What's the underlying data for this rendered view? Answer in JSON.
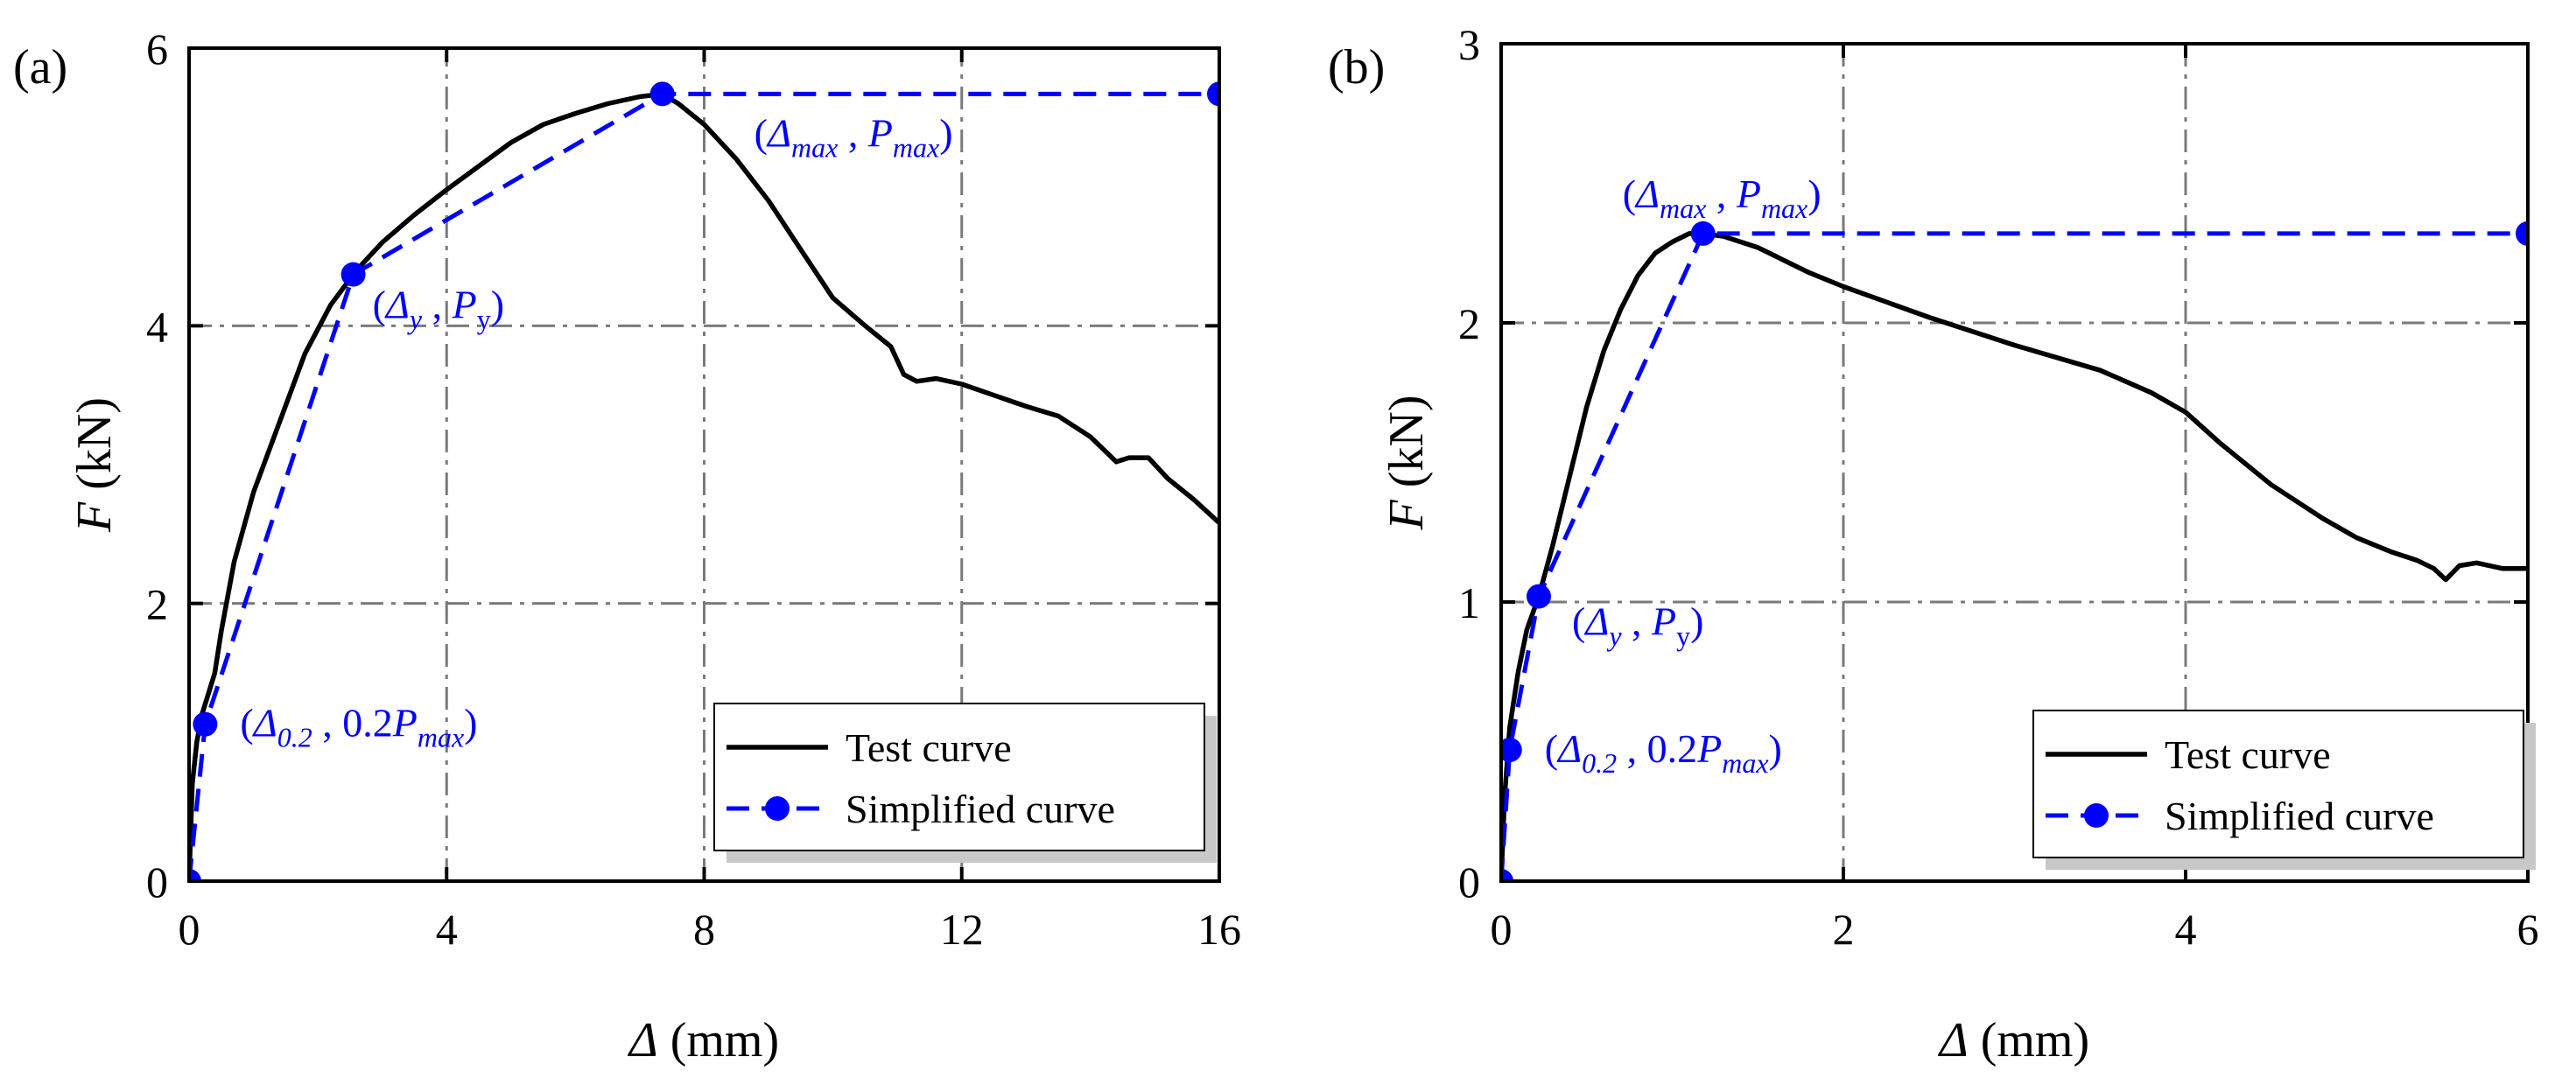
{
  "figure": {
    "panels": [
      "a",
      "b"
    ]
  },
  "chart_data": [
    {
      "type": "line",
      "panel_label": "(a)",
      "xlabel_symbol": "Δ",
      "xlabel_unit": " (mm)",
      "ylabel_symbol": "F",
      "ylabel_unit": " (kN)",
      "xlim": [
        0,
        16
      ],
      "ylim": [
        0,
        6
      ],
      "xticks": [
        0,
        4,
        8,
        12,
        16
      ],
      "yticks": [
        0,
        2,
        4,
        6
      ],
      "grid": true,
      "legend_position": "bottom-right",
      "series": [
        {
          "name": "Test curve",
          "style": "solid",
          "color": "#000000",
          "x": [
            0,
            0.05,
            0.12,
            0.2,
            0.3,
            0.4,
            0.5,
            0.7,
            1.0,
            1.4,
            1.8,
            2.2,
            2.6,
            3.0,
            3.5,
            4.0,
            4.5,
            5.0,
            5.5,
            6.0,
            6.5,
            7.0,
            7.35,
            7.6,
            8.0,
            8.5,
            9.0,
            9.5,
            10.0,
            10.5,
            10.9,
            11.1,
            11.3,
            11.6,
            12.0,
            12.5,
            13.0,
            13.5,
            14.0,
            14.4,
            14.6,
            14.9,
            15.2,
            15.6,
            16.0
          ],
          "y": [
            0,
            0.7,
            1.0,
            1.2,
            1.35,
            1.5,
            1.8,
            2.3,
            2.8,
            3.3,
            3.8,
            4.15,
            4.4,
            4.6,
            4.8,
            4.98,
            5.15,
            5.32,
            5.45,
            5.53,
            5.6,
            5.65,
            5.67,
            5.6,
            5.45,
            5.2,
            4.9,
            4.55,
            4.2,
            4.0,
            3.85,
            3.65,
            3.6,
            3.62,
            3.58,
            3.5,
            3.42,
            3.35,
            3.2,
            3.02,
            3.05,
            3.05,
            2.9,
            2.75,
            2.58
          ]
        },
        {
          "name": "Simplified curve",
          "style": "dashed",
          "color": "#0000ff",
          "marker": "circle",
          "x": [
            0,
            0.25,
            2.55,
            7.35,
            16
          ],
          "y": [
            0,
            1.13,
            4.37,
            5.67,
            5.67
          ]
        }
      ],
      "key_points": [
        {
          "x": 0.25,
          "y": 1.13,
          "label_parts": [
            "(",
            "Δ",
            "0.2",
            " , 0.2",
            "P",
            "max",
            ")"
          ]
        },
        {
          "x": 2.55,
          "y": 4.37,
          "label_parts": [
            "(",
            "Δ",
            "y",
            " , ",
            "P",
            "y",
            ")"
          ]
        },
        {
          "x": 7.35,
          "y": 5.67,
          "label_parts": [
            "(",
            "Δ",
            "max",
            " , ",
            "P",
            "max",
            ")"
          ]
        }
      ],
      "legend": [
        "Test curve",
        "Simplified curve"
      ]
    },
    {
      "type": "line",
      "panel_label": "(b)",
      "xlabel_symbol": "Δ",
      "xlabel_unit": " (mm)",
      "ylabel_symbol": "F",
      "ylabel_unit": " (kN)",
      "xlim": [
        0,
        6
      ],
      "ylim": [
        0,
        3
      ],
      "xticks": [
        0,
        2,
        4,
        6
      ],
      "yticks": [
        0,
        1,
        2,
        3
      ],
      "grid": true,
      "legend_position": "bottom-right",
      "series": [
        {
          "name": "Test curve",
          "style": "solid",
          "color": "#000000",
          "x": [
            0,
            0.02,
            0.05,
            0.1,
            0.15,
            0.22,
            0.3,
            0.4,
            0.5,
            0.6,
            0.7,
            0.8,
            0.9,
            1.0,
            1.1,
            1.18,
            1.3,
            1.5,
            1.8,
            2.0,
            2.5,
            3.0,
            3.5,
            3.8,
            4.0,
            4.2,
            4.5,
            4.8,
            5.0,
            5.2,
            5.35,
            5.45,
            5.52,
            5.6,
            5.7,
            5.85,
            6.0
          ],
          "y": [
            0,
            0.3,
            0.55,
            0.75,
            0.9,
            1.02,
            1.2,
            1.45,
            1.7,
            1.9,
            2.05,
            2.17,
            2.25,
            2.29,
            2.32,
            2.32,
            2.31,
            2.27,
            2.18,
            2.13,
            2.02,
            1.92,
            1.83,
            1.75,
            1.68,
            1.57,
            1.42,
            1.3,
            1.23,
            1.18,
            1.15,
            1.12,
            1.08,
            1.13,
            1.14,
            1.12,
            1.12
          ]
        },
        {
          "name": "Simplified curve",
          "style": "dashed",
          "color": "#0000ff",
          "marker": "circle",
          "x": [
            0,
            0.05,
            0.22,
            1.18,
            6
          ],
          "y": [
            0,
            0.47,
            1.02,
            2.32,
            2.32
          ]
        }
      ],
      "key_points": [
        {
          "x": 0.05,
          "y": 0.47,
          "label_parts": [
            "(",
            "Δ",
            "0.2",
            " , 0.2",
            "P",
            "max",
            ")"
          ]
        },
        {
          "x": 0.22,
          "y": 1.02,
          "label_parts": [
            "(",
            "Δ",
            "y",
            " , ",
            "P",
            "y",
            ")"
          ]
        },
        {
          "x": 1.18,
          "y": 2.32,
          "label_parts": [
            "(",
            "Δ",
            "max",
            " , ",
            "P",
            "max",
            ")"
          ]
        }
      ],
      "legend": [
        "Test curve",
        "Simplified curve"
      ]
    }
  ]
}
